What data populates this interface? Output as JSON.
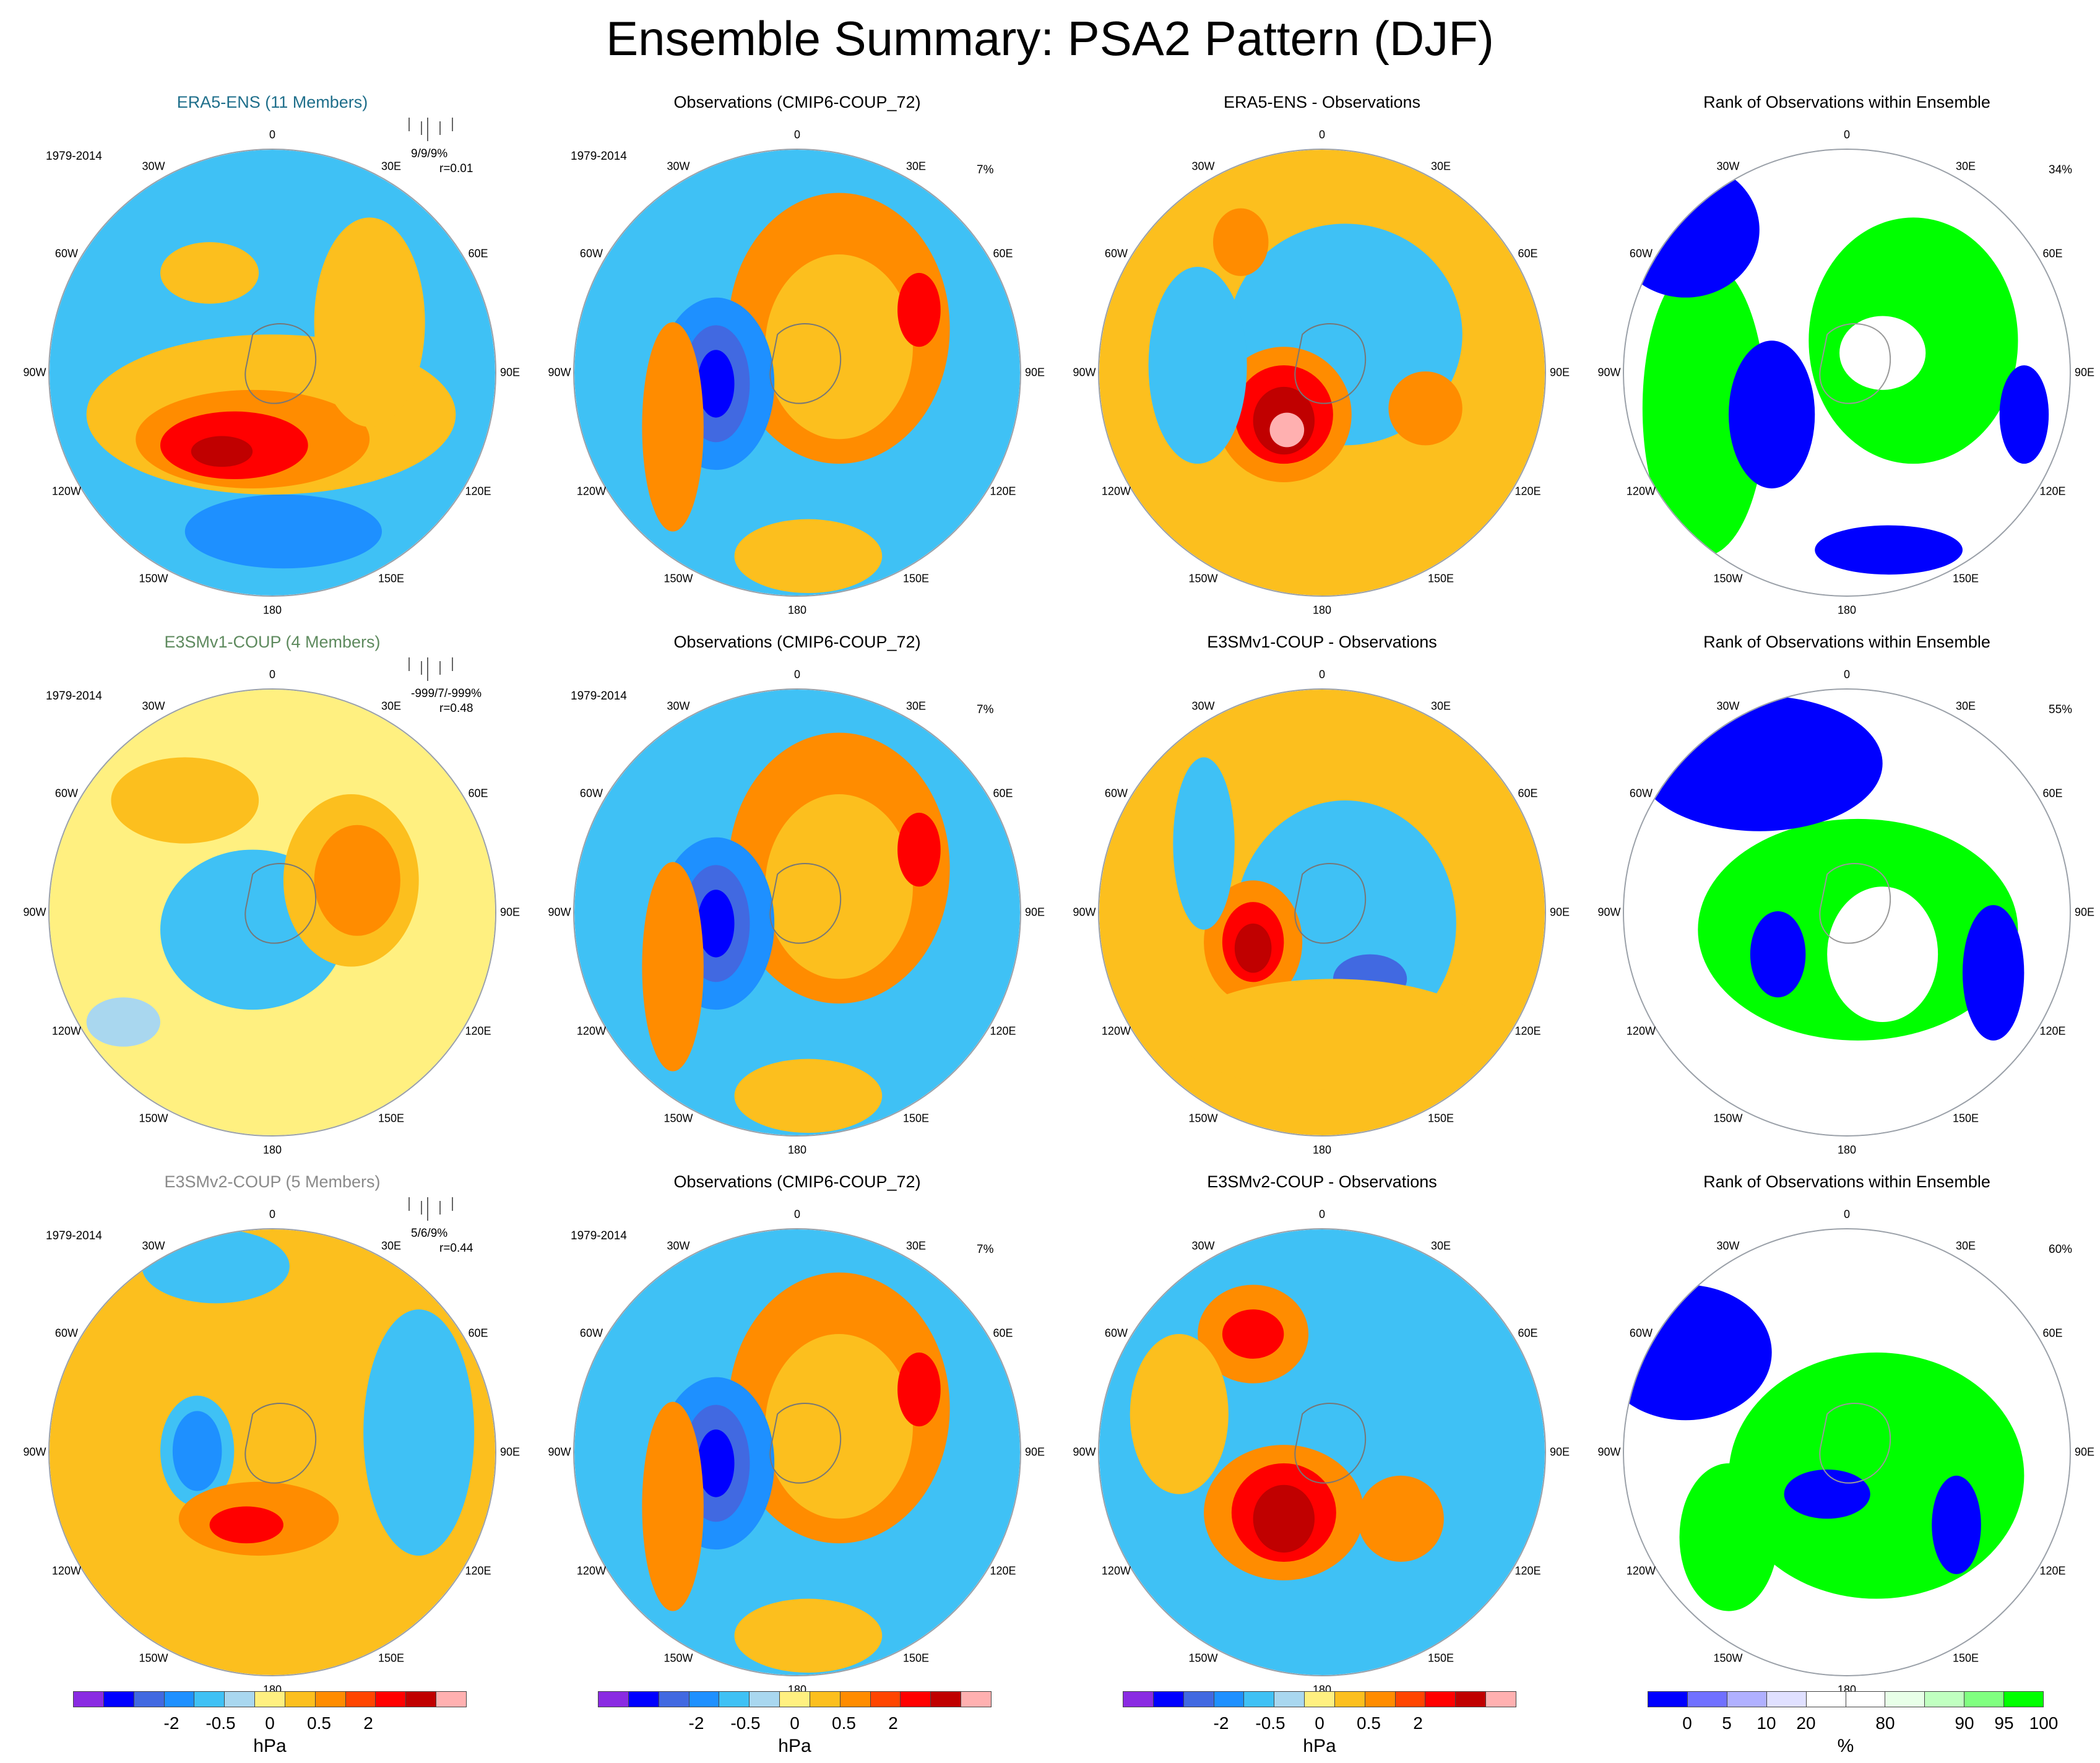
{
  "title": "Ensemble Summary: PSA2 Pattern (DJF)",
  "rows": [
    {
      "ensemble": {
        "title": "ERA5-ENS (11 Members)",
        "color": "#1f6f8b",
        "period": "1979-2014",
        "stats": "9/9/9%",
        "corr": "r=0.01"
      },
      "observations": {
        "title": "Observations (CMIP6-COUP_72)",
        "period": "1979-2014",
        "pct": "7%"
      },
      "difference": {
        "title": "ERA5-ENS - Observations"
      },
      "rank": {
        "title": "Rank of Observations within Ensemble",
        "pct": "34%"
      }
    },
    {
      "ensemble": {
        "title": "E3SMv1-COUP (4 Members)",
        "color": "#5e8a5e",
        "period": "1979-2014",
        "stats": "-999/7/-999%",
        "corr": "r=0.48"
      },
      "observations": {
        "title": "Observations (CMIP6-COUP_72)",
        "period": "1979-2014",
        "pct": "7%"
      },
      "difference": {
        "title": "E3SMv1-COUP - Observations"
      },
      "rank": {
        "title": "Rank of Observations within Ensemble",
        "pct": "55%"
      }
    },
    {
      "ensemble": {
        "title": "E3SMv2-COUP (5 Members)",
        "color": "#8a8a8a",
        "period": "1979-2014",
        "stats": "5/6/9%",
        "corr": "r=0.44"
      },
      "observations": {
        "title": "Observations (CMIP6-COUP_72)",
        "period": "1979-2014",
        "pct": "7%"
      },
      "difference": {
        "title": "E3SMv2-COUP - Observations"
      },
      "rank": {
        "title": "Rank of Observations within Ensemble",
        "pct": "60%"
      }
    }
  ],
  "longitude_labels": [
    "0",
    "30E",
    "60E",
    "90E",
    "120E",
    "150E",
    "180",
    "150W",
    "120W",
    "90W",
    "60W",
    "30W"
  ],
  "colorbar_hpa": {
    "colors": [
      "#8a2be2",
      "#0000ff",
      "#4169e1",
      "#1e90ff",
      "#3fc1f5",
      "#a9d7ef",
      "#fff080",
      "#fcbf1e",
      "#ff8c00",
      "#ff4500",
      "#ff0000",
      "#c00000",
      "#ffb0b0"
    ],
    "ticks": [
      "-2",
      "-0.5",
      "0",
      "0.5",
      "2"
    ],
    "unit": "hPa"
  },
  "colorbar_pct": {
    "colors": [
      "#0000ff",
      "#7070ff",
      "#b0b0ff",
      "#e0e0ff",
      "#ffffff",
      "#ffffff",
      "#e8ffe8",
      "#c0ffc0",
      "#80ff80",
      "#00ff00"
    ],
    "ticks": [
      "0",
      "5",
      "10",
      "20",
      "80",
      "90",
      "95",
      "100"
    ],
    "unit": "%"
  }
}
